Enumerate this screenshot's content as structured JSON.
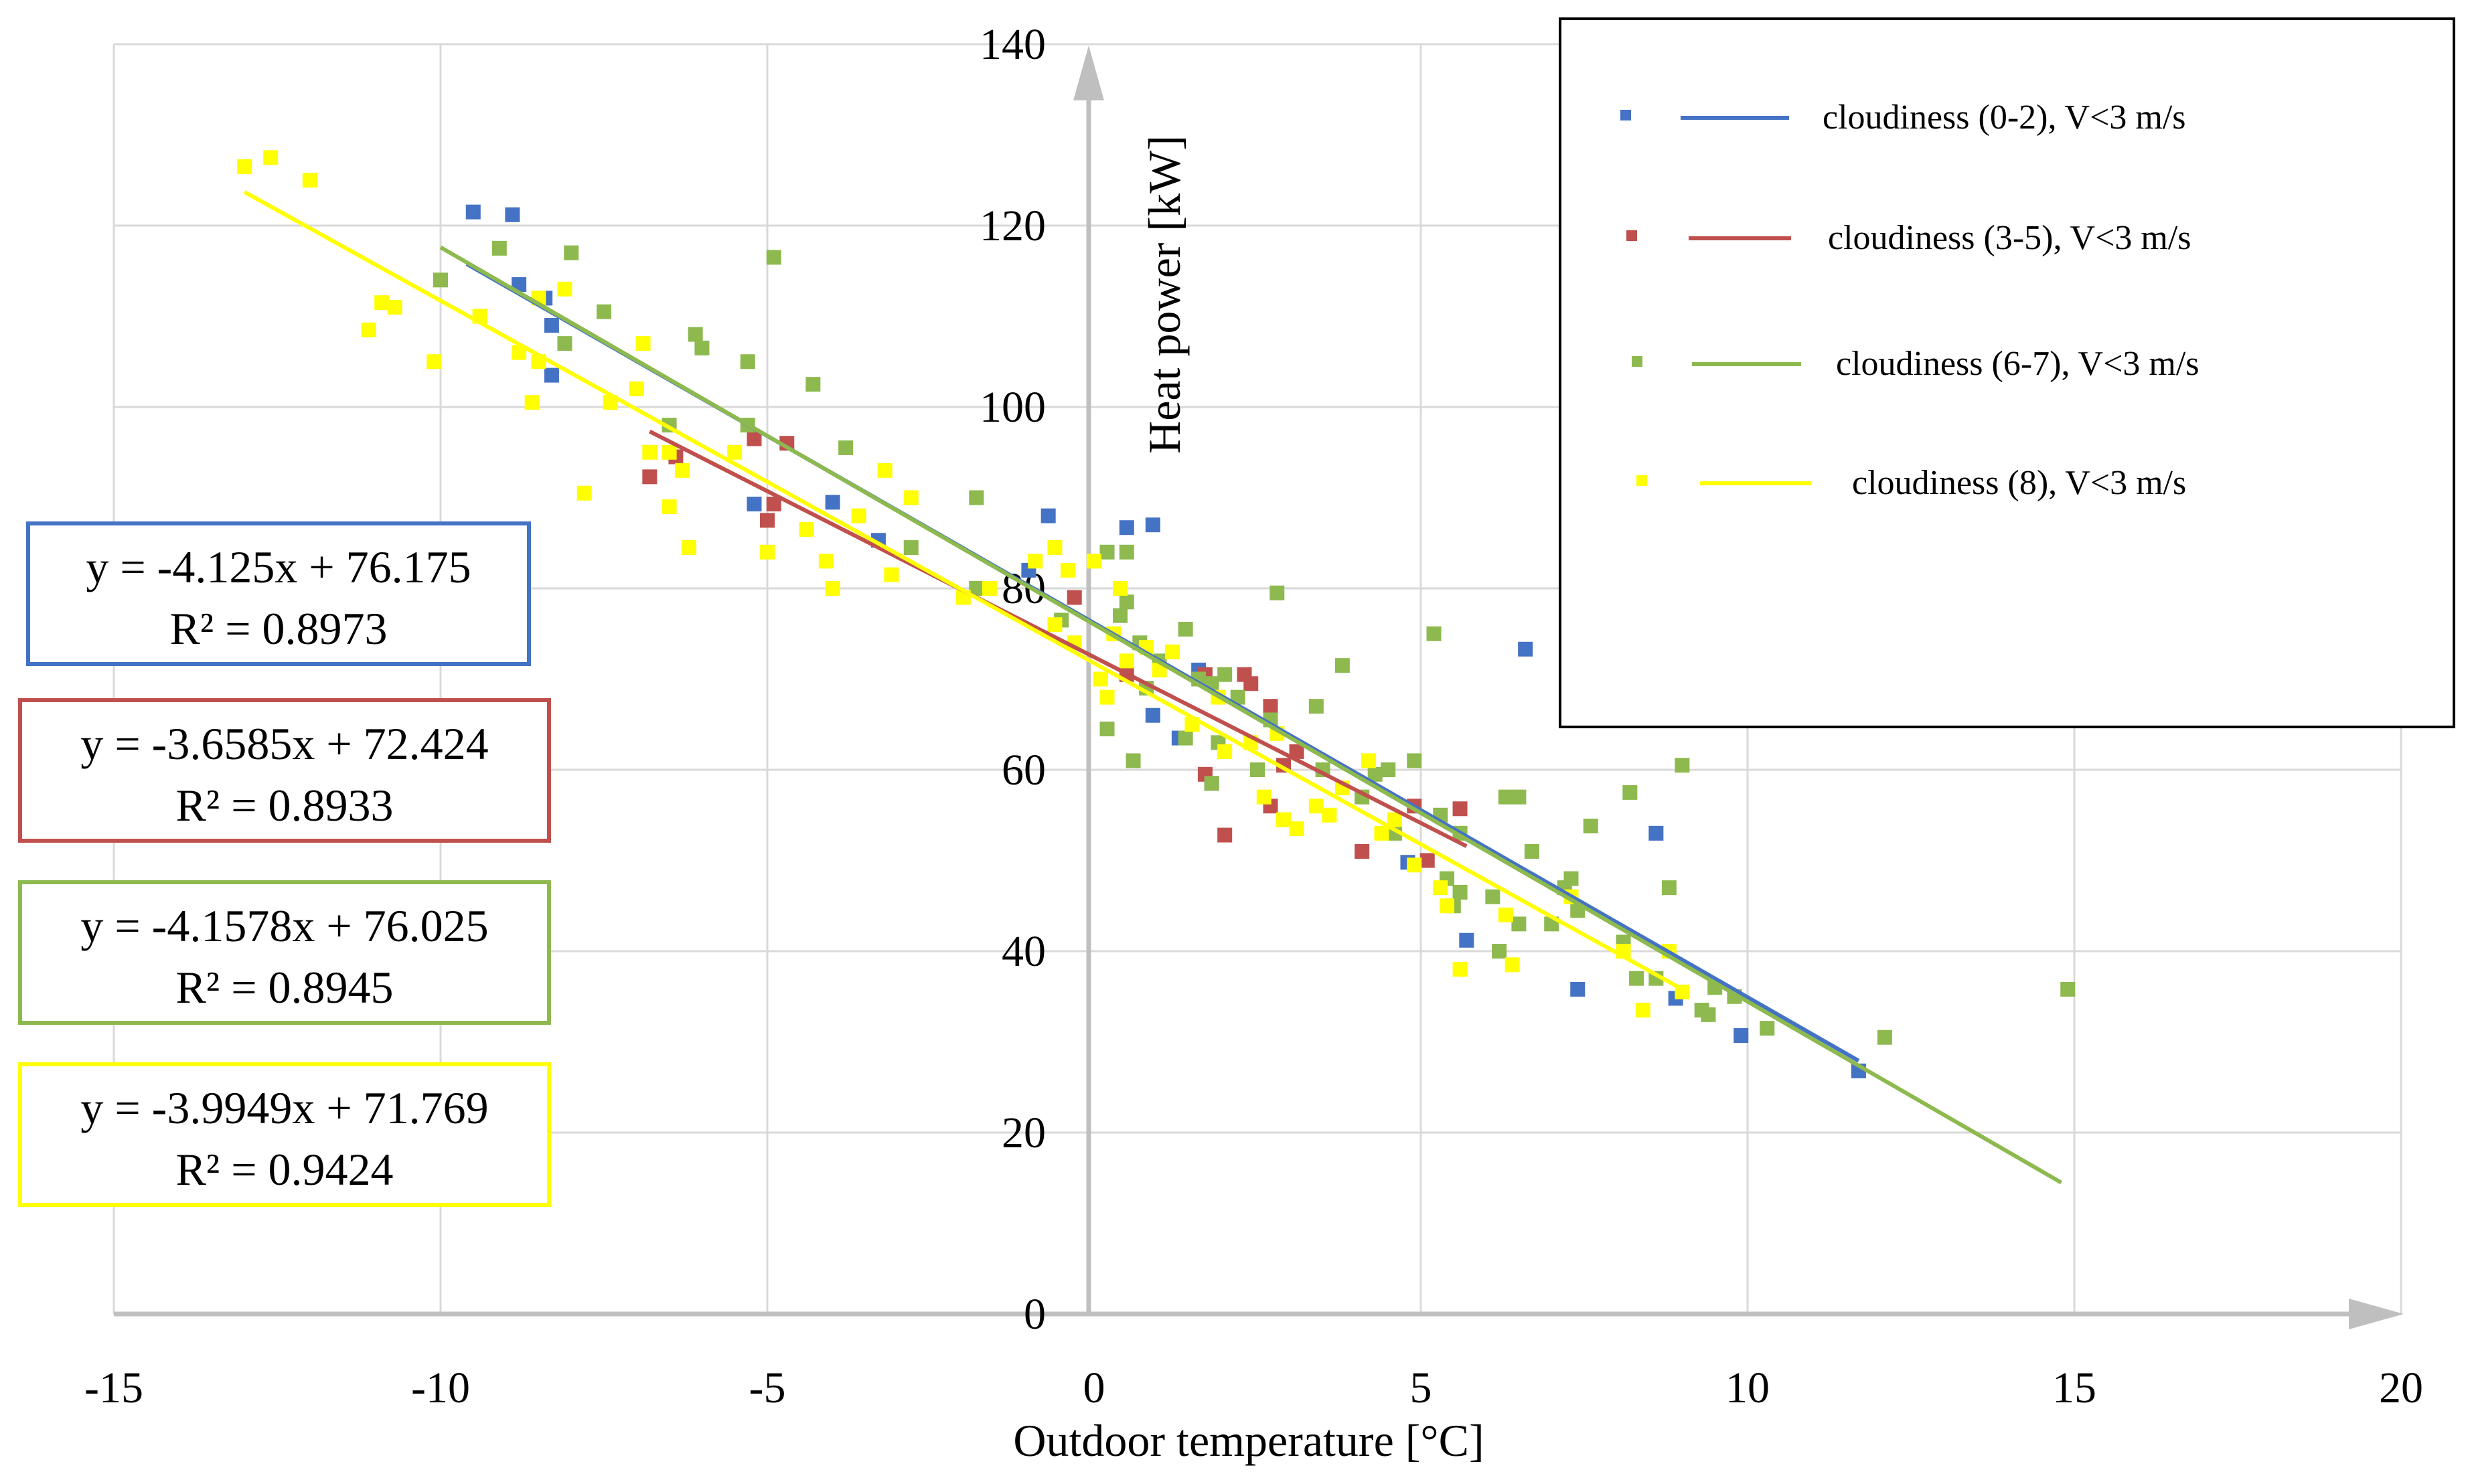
{
  "chart_data": {
    "type": "scatter",
    "title": "",
    "xlabel": "Outdoor temperature [°C]",
    "ylabel": "Heat power [kW]",
    "xlim": [
      -15,
      20
    ],
    "ylim": [
      0,
      140
    ],
    "xticks": [
      "-15",
      "-10",
      "-5",
      "0",
      "5",
      "10",
      "15",
      "20"
    ],
    "yticks": [
      "0",
      "20",
      "40",
      "60",
      "80",
      "100",
      "120",
      "140"
    ],
    "grid": true,
    "legend_position": "top-right",
    "series": [
      {
        "name": "cloudiness (0-2), V<3 m/s",
        "color": "#4472c4",
        "trendline": {
          "x_range": [
            -9.6,
            11.7
          ],
          "slope": -4.125,
          "intercept": 76.175
        },
        "equation": "y = -4.125x + 76.175",
        "r2": "R² = 0.8973",
        "points": [
          [
            -9.5,
            121.5
          ],
          [
            -8.9,
            121.2
          ],
          [
            -8.8,
            113.5
          ],
          [
            -8.4,
            112
          ],
          [
            -8.3,
            109
          ],
          [
            -8.3,
            103.5
          ],
          [
            -5.2,
            89.3
          ],
          [
            -4,
            89.5
          ],
          [
            -3.3,
            85.3
          ],
          [
            -1,
            82
          ],
          [
            -0.7,
            88
          ],
          [
            0.5,
            86.7
          ],
          [
            0.9,
            87
          ],
          [
            0.9,
            66
          ],
          [
            1.3,
            63.5
          ],
          [
            1.6,
            71
          ],
          [
            1.8,
            58.5
          ],
          [
            4.8,
            49.8
          ],
          [
            5.7,
            41.2
          ],
          [
            6.6,
            73.3
          ],
          [
            7.4,
            35.8
          ],
          [
            8.6,
            53
          ],
          [
            8.9,
            34.8
          ],
          [
            9.9,
            30.7
          ],
          [
            11.7,
            26.8
          ]
        ]
      },
      {
        "name": "cloudiness (3-5), V<3 m/s",
        "color": "#c0504d",
        "trendline": {
          "x_range": [
            -6.8,
            5.7
          ],
          "slope": -3.6585,
          "intercept": 72.424
        },
        "equation": "y = -3.6585x + 72.424",
        "r2": "R² = 0.8933",
        "points": [
          [
            -6.8,
            92.3
          ],
          [
            -6.4,
            94.5
          ],
          [
            -5.2,
            96.5
          ],
          [
            -5,
            87.5
          ],
          [
            -4.9,
            89.3
          ],
          [
            -4.7,
            96
          ],
          [
            -0.3,
            79
          ],
          [
            0.5,
            70.5
          ],
          [
            1.7,
            59.5
          ],
          [
            1.7,
            70.5
          ],
          [
            2,
            52.8
          ],
          [
            2.3,
            70.5
          ],
          [
            2.4,
            69.5
          ],
          [
            2.7,
            67
          ],
          [
            2.7,
            56
          ],
          [
            2.9,
            60.5
          ],
          [
            3.1,
            62
          ],
          [
            4.1,
            51
          ],
          [
            4.9,
            56
          ],
          [
            5.1,
            50
          ],
          [
            5.6,
            55.7
          ]
        ]
      },
      {
        "name": "cloudiness (6-7), V<3 m/s",
        "color": "#8db94f",
        "trendline": {
          "x_range": [
            -10,
            14.8
          ],
          "slope": -4.1578,
          "intercept": 76.025
        },
        "equation": "y = -4.1578x + 76.025",
        "r2": "R² = 0.8945",
        "points": [
          [
            -10,
            114
          ],
          [
            -9.1,
            117.5
          ],
          [
            -8.1,
            107
          ],
          [
            -8,
            117
          ],
          [
            -7.5,
            110.5
          ],
          [
            -6.5,
            98
          ],
          [
            -6.1,
            108
          ],
          [
            -6,
            106.5
          ],
          [
            -5.3,
            105
          ],
          [
            -5.3,
            98
          ],
          [
            -4.9,
            116.5
          ],
          [
            -4.3,
            102.5
          ],
          [
            -3.8,
            95.5
          ],
          [
            -2.8,
            84.5
          ],
          [
            -1.8,
            80
          ],
          [
            -1.8,
            90
          ],
          [
            -0.5,
            76.5
          ],
          [
            0.2,
            64.5
          ],
          [
            0.2,
            84
          ],
          [
            0.5,
            84
          ],
          [
            0.4,
            77
          ],
          [
            0.5,
            78.5
          ],
          [
            0.6,
            61
          ],
          [
            0.7,
            74
          ],
          [
            0.8,
            69
          ],
          [
            1,
            72
          ],
          [
            1.4,
            63.5
          ],
          [
            1.4,
            75.5
          ],
          [
            1.6,
            70
          ],
          [
            1.8,
            69.5
          ],
          [
            1.8,
            58.5
          ],
          [
            1.9,
            63
          ],
          [
            2,
            70.5
          ],
          [
            2.2,
            68
          ],
          [
            2.5,
            60
          ],
          [
            2.7,
            65.5
          ],
          [
            2.8,
            79.5
          ],
          [
            3.4,
            67
          ],
          [
            3.5,
            60
          ],
          [
            3.8,
            71.5
          ],
          [
            4.1,
            57
          ],
          [
            4.3,
            59.5
          ],
          [
            4.5,
            60
          ],
          [
            4.6,
            53
          ],
          [
            4.9,
            61
          ],
          [
            5.2,
            75
          ],
          [
            5.3,
            55
          ],
          [
            5.4,
            48
          ],
          [
            5.5,
            45
          ],
          [
            5.6,
            53
          ],
          [
            5.6,
            46.5
          ],
          [
            6.1,
            46
          ],
          [
            6.2,
            40
          ],
          [
            6.3,
            57
          ],
          [
            6.5,
            57
          ],
          [
            6.5,
            43
          ],
          [
            6.7,
            51
          ],
          [
            7,
            43
          ],
          [
            7.2,
            47
          ],
          [
            7.3,
            48
          ],
          [
            7.4,
            44.5
          ],
          [
            7.6,
            53.8
          ],
          [
            8.1,
            41
          ],
          [
            8.2,
            57.5
          ],
          [
            8.3,
            37
          ],
          [
            8.6,
            37
          ],
          [
            8.8,
            47
          ],
          [
            9,
            60.5
          ],
          [
            9.3,
            33.5
          ],
          [
            9.4,
            33
          ],
          [
            9.5,
            36
          ],
          [
            9.8,
            35
          ],
          [
            10.3,
            31.5
          ],
          [
            12.1,
            30.5
          ],
          [
            14.9,
            35.8
          ]
        ]
      },
      {
        "name": "cloudiness (8), V<3 m/s",
        "color": "#ffff00",
        "trendline": {
          "x_range": [
            -13,
            9
          ],
          "slope": -3.9949,
          "intercept": 71.769
        },
        "equation": "y = -3.9949x + 71.769",
        "r2": "R² = 0.9424",
        "points": [
          [
            -13,
            126.5
          ],
          [
            -12.6,
            127.5
          ],
          [
            -12,
            125
          ],
          [
            -11.1,
            108.5
          ],
          [
            -10.9,
            111.5
          ],
          [
            -10.7,
            111
          ],
          [
            -10.1,
            105
          ],
          [
            -9.4,
            110
          ],
          [
            -8.8,
            106
          ],
          [
            -8.6,
            100.5
          ],
          [
            -8.5,
            112
          ],
          [
            -8.5,
            105
          ],
          [
            -8.1,
            113
          ],
          [
            -7.8,
            90.5
          ],
          [
            -7.4,
            100.5
          ],
          [
            -7,
            102
          ],
          [
            -6.9,
            107
          ],
          [
            -6.8,
            95
          ],
          [
            -6.5,
            95
          ],
          [
            -6.5,
            89
          ],
          [
            -6.3,
            93
          ],
          [
            -6.2,
            84.5
          ],
          [
            -5.5,
            95
          ],
          [
            -5,
            84
          ],
          [
            -4.4,
            86.5
          ],
          [
            -4.1,
            83
          ],
          [
            -4,
            80
          ],
          [
            -3.6,
            88
          ],
          [
            -3.2,
            93
          ],
          [
            -3.1,
            81.5
          ],
          [
            -2.8,
            90
          ],
          [
            -2,
            79
          ],
          [
            -1.6,
            80
          ],
          [
            -0.9,
            83
          ],
          [
            -0.6,
            84.5
          ],
          [
            -0.6,
            76
          ],
          [
            -0.4,
            82
          ],
          [
            -0.3,
            74
          ],
          [
            0,
            83
          ],
          [
            0.1,
            70
          ],
          [
            0.2,
            68
          ],
          [
            0.3,
            75
          ],
          [
            0.4,
            80
          ],
          [
            0.5,
            72
          ],
          [
            0.8,
            73.5
          ],
          [
            1,
            71
          ],
          [
            1.2,
            73
          ],
          [
            1.5,
            65
          ],
          [
            1.9,
            68
          ],
          [
            2,
            62
          ],
          [
            2.4,
            63
          ],
          [
            2.6,
            57
          ],
          [
            2.8,
            64
          ],
          [
            2.9,
            54.5
          ],
          [
            3.1,
            53.5
          ],
          [
            3.4,
            56
          ],
          [
            3.6,
            55
          ],
          [
            3.8,
            58
          ],
          [
            4.2,
            61
          ],
          [
            4.4,
            53
          ],
          [
            4.6,
            54.5
          ],
          [
            4.9,
            49.5
          ],
          [
            5.3,
            47
          ],
          [
            5.4,
            45
          ],
          [
            5.6,
            38
          ],
          [
            6.3,
            44
          ],
          [
            6.4,
            38.5
          ],
          [
            7.3,
            46
          ],
          [
            8.1,
            40
          ],
          [
            8.4,
            33.5
          ],
          [
            8.8,
            40
          ],
          [
            9,
            35.5
          ]
        ]
      }
    ]
  }
}
